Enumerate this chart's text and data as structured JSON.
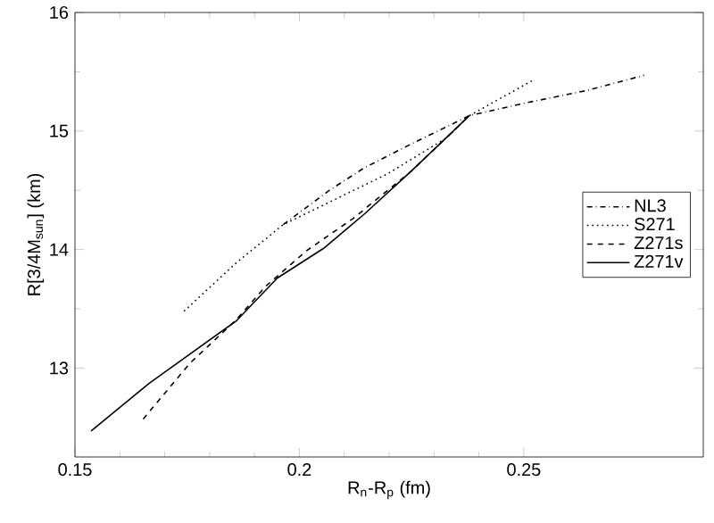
{
  "chart_data": {
    "type": "line",
    "xlabel": "R$_{n}$-R$_{p}$ (fm)",
    "ylabel": "R[3/4M$_{sun}$] (km)",
    "xlim": [
      0.15,
      0.29
    ],
    "ylim": [
      12.25,
      16
    ],
    "xticks": [
      0.15,
      0.2,
      0.25
    ],
    "yticks": [
      13,
      14,
      15,
      16
    ],
    "legend": "right",
    "grid": false,
    "series": [
      {
        "name": "NL3",
        "color": "#000000",
        "line_style": "dashdot",
        "x": [
          0.1964,
          0.2067,
          0.2145,
          0.2249,
          0.2379,
          0.2508,
          0.2638,
          0.2768
        ],
        "values": [
          14.21,
          14.5,
          14.69,
          14.89,
          15.13,
          15.24,
          15.34,
          15.47
        ]
      },
      {
        "name": "S271",
        "color": "#000000",
        "line_style": "dotted",
        "x": [
          0.1743,
          0.186,
          0.1964,
          0.2067,
          0.2197,
          0.2327,
          0.2379,
          0.2521
        ],
        "values": [
          13.48,
          13.89,
          14.21,
          14.4,
          14.64,
          14.94,
          15.13,
          15.43
        ]
      },
      {
        "name": "Z271s",
        "color": "#000000",
        "line_style": "dashed",
        "x": [
          0.1652,
          0.1756,
          0.186,
          0.1925,
          0.2016,
          0.2119,
          0.2249,
          0.2379
        ],
        "values": [
          12.57,
          13.04,
          13.41,
          13.69,
          13.99,
          14.26,
          14.66,
          15.13
        ]
      },
      {
        "name": "Z271v",
        "color": "#000000",
        "line_style": "solid",
        "x": [
          0.1536,
          0.1665,
          0.186,
          0.1951,
          0.2054,
          0.2145,
          0.2249,
          0.2379
        ],
        "values": [
          12.47,
          12.87,
          13.4,
          13.76,
          14.01,
          14.3,
          14.66,
          15.13
        ]
      }
    ]
  }
}
